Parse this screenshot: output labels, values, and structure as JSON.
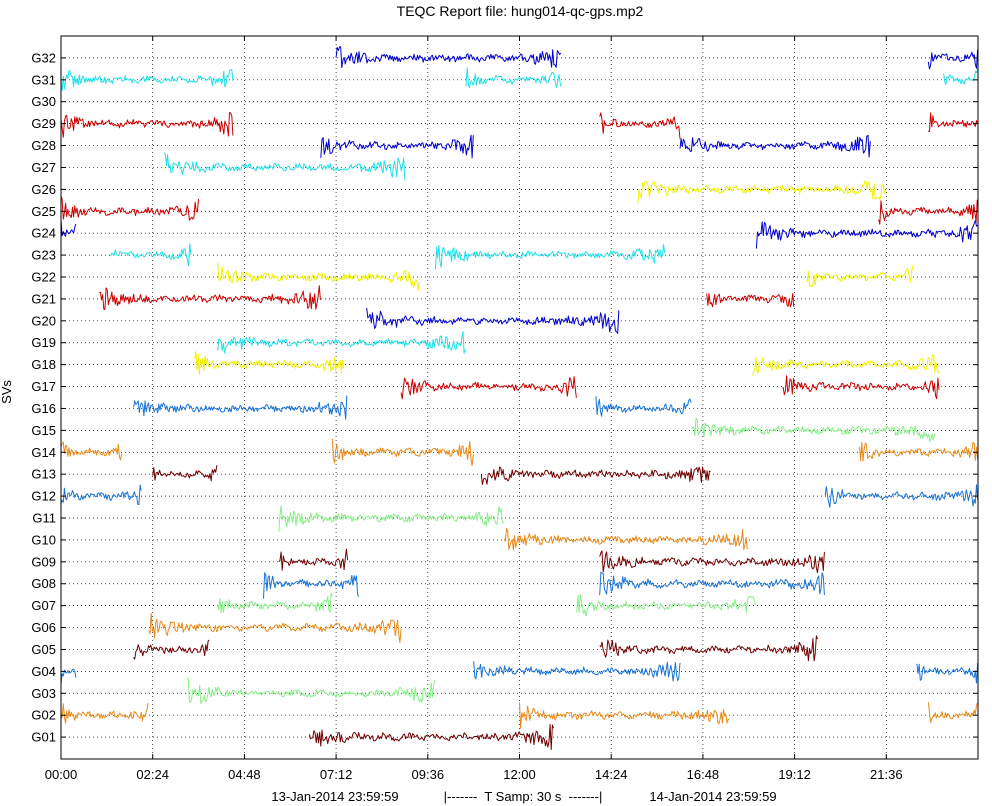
{
  "chart_data": {
    "type": "line",
    "title": "TEQC Report file: hung014-qc-gps.mp2",
    "ylabel": "SVs",
    "xlabel": "",
    "xlim": [
      0,
      24
    ],
    "ylim": [
      0,
      33
    ],
    "grid": true,
    "x_ticks": [
      0,
      2.4,
      4.8,
      7.2,
      9.6,
      12,
      14.4,
      16.8,
      19.2,
      21.6
    ],
    "x_tick_labels": [
      "00:00",
      "02:24",
      "04:48",
      "07:12",
      "09:36",
      "12:00",
      "14:24",
      "16:48",
      "19:12",
      "21:36"
    ],
    "footer": {
      "start": "13-Jan-2014 23:59:59",
      "middle": "|-------  T Samp: 30 s  -------|",
      "end": "14-Jan-2014 23:59:59"
    },
    "colors": {
      "blue": "#0000cc",
      "cyan": "#22e0e8",
      "red": "#cc0000",
      "yellow": "#f2f200",
      "light_green": "#88ee88",
      "orange": "#e88a1a",
      "maroon": "#700000",
      "mid_blue": "#1a73d4"
    },
    "satellites": [
      {
        "label": "G01",
        "y": 1,
        "color": "#700000",
        "passes": [
          [
            6.5,
            12.9
          ]
        ]
      },
      {
        "label": "G02",
        "y": 2,
        "color": "#e88a1a",
        "passes": [
          [
            0,
            2.3
          ],
          [
            12.0,
            17.5
          ],
          [
            22.7,
            24
          ]
        ]
      },
      {
        "label": "G03",
        "y": 3,
        "color": "#88ee88",
        "passes": [
          [
            3.3,
            9.8
          ]
        ]
      },
      {
        "label": "G04",
        "y": 4,
        "color": "#1a73d4",
        "passes": [
          [
            0,
            0.4
          ],
          [
            10.8,
            16.2
          ],
          [
            22.4,
            24
          ]
        ]
      },
      {
        "label": "G05",
        "y": 5,
        "color": "#700000",
        "passes": [
          [
            1.9,
            3.9
          ],
          [
            14.1,
            19.8
          ]
        ]
      },
      {
        "label": "G06",
        "y": 6,
        "color": "#e88a1a",
        "passes": [
          [
            2.3,
            8.9
          ]
        ]
      },
      {
        "label": "G07",
        "y": 7,
        "color": "#88ee88",
        "passes": [
          [
            4.1,
            7.1
          ],
          [
            13.5,
            18.2
          ]
        ]
      },
      {
        "label": "G08",
        "y": 8,
        "color": "#1a73d4",
        "passes": [
          [
            5.3,
            7.8
          ],
          [
            14.1,
            20.0
          ]
        ]
      },
      {
        "label": "G09",
        "y": 9,
        "color": "#700000",
        "passes": [
          [
            5.7,
            7.5
          ],
          [
            14.1,
            20.0
          ]
        ]
      },
      {
        "label": "G10",
        "y": 10,
        "color": "#e88a1a",
        "passes": [
          [
            11.6,
            18.0
          ]
        ]
      },
      {
        "label": "G11",
        "y": 11,
        "color": "#88ee88",
        "passes": [
          [
            5.7,
            11.6
          ]
        ]
      },
      {
        "label": "G12",
        "y": 12,
        "color": "#1a73d4",
        "passes": [
          [
            0,
            2.1
          ],
          [
            20.0,
            24
          ]
        ]
      },
      {
        "label": "G13",
        "y": 13,
        "color": "#700000",
        "passes": [
          [
            2.4,
            4.1
          ],
          [
            11.0,
            17.0
          ]
        ]
      },
      {
        "label": "G14",
        "y": 14,
        "color": "#e88a1a",
        "passes": [
          [
            0,
            1.6
          ],
          [
            7.1,
            10.8
          ],
          [
            20.9,
            24
          ]
        ]
      },
      {
        "label": "G15",
        "y": 15,
        "color": "#88ee88",
        "passes": [
          [
            16.5,
            22.9
          ]
        ]
      },
      {
        "label": "G16",
        "y": 16,
        "color": "#1a73d4",
        "passes": [
          [
            1.9,
            7.5
          ],
          [
            14.0,
            16.5
          ]
        ]
      },
      {
        "label": "G17",
        "y": 17,
        "color": "#cc0000",
        "passes": [
          [
            8.9,
            13.5
          ],
          [
            18.9,
            23.0
          ]
        ]
      },
      {
        "label": "G18",
        "y": 18,
        "color": "#f2f200",
        "passes": [
          [
            3.5,
            7.4
          ],
          [
            18.1,
            23.0
          ]
        ]
      },
      {
        "label": "G19",
        "y": 19,
        "color": "#22e0e8",
        "passes": [
          [
            4.1,
            10.6
          ]
        ]
      },
      {
        "label": "G20",
        "y": 20,
        "color": "#0000cc",
        "passes": [
          [
            8.0,
            14.6
          ]
        ]
      },
      {
        "label": "G21",
        "y": 21,
        "color": "#cc0000",
        "passes": [
          [
            1.0,
            6.8
          ],
          [
            16.9,
            19.2
          ]
        ]
      },
      {
        "label": "G22",
        "y": 22,
        "color": "#f2f200",
        "passes": [
          [
            4.1,
            9.4
          ],
          [
            19.5,
            22.3
          ]
        ]
      },
      {
        "label": "G23",
        "y": 23,
        "color": "#22e0e8",
        "passes": [
          [
            1.3,
            3.4
          ],
          [
            9.8,
            15.8
          ]
        ]
      },
      {
        "label": "G24",
        "y": 24,
        "color": "#0000cc",
        "passes": [
          [
            0,
            0.4
          ],
          [
            18.2,
            24
          ]
        ]
      },
      {
        "label": "G25",
        "y": 25,
        "color": "#cc0000",
        "passes": [
          [
            0,
            3.6
          ],
          [
            21.4,
            24
          ]
        ]
      },
      {
        "label": "G26",
        "y": 26,
        "color": "#f2f200",
        "passes": [
          [
            15.1,
            21.6
          ]
        ]
      },
      {
        "label": "G27",
        "y": 27,
        "color": "#22e0e8",
        "passes": [
          [
            2.7,
            9.0
          ]
        ]
      },
      {
        "label": "G28",
        "y": 28,
        "color": "#0000cc",
        "passes": [
          [
            6.8,
            10.8
          ],
          [
            16.2,
            21.2
          ]
        ]
      },
      {
        "label": "G29",
        "y": 29,
        "color": "#cc0000",
        "passes": [
          [
            0,
            4.5
          ],
          [
            14.1,
            16.2
          ],
          [
            22.7,
            24
          ]
        ]
      },
      {
        "label": "G30",
        "y": 30,
        "color": "#0000cc",
        "passes": []
      },
      {
        "label": "G31",
        "y": 31,
        "color": "#22e0e8",
        "passes": [
          [
            0,
            4.5
          ],
          [
            10.6,
            13.1
          ],
          [
            23.1,
            24
          ]
        ]
      },
      {
        "label": "G32",
        "y": 32,
        "color": "#0000cc",
        "passes": [
          [
            7.2,
            13.1
          ],
          [
            22.7,
            24
          ]
        ]
      }
    ]
  }
}
